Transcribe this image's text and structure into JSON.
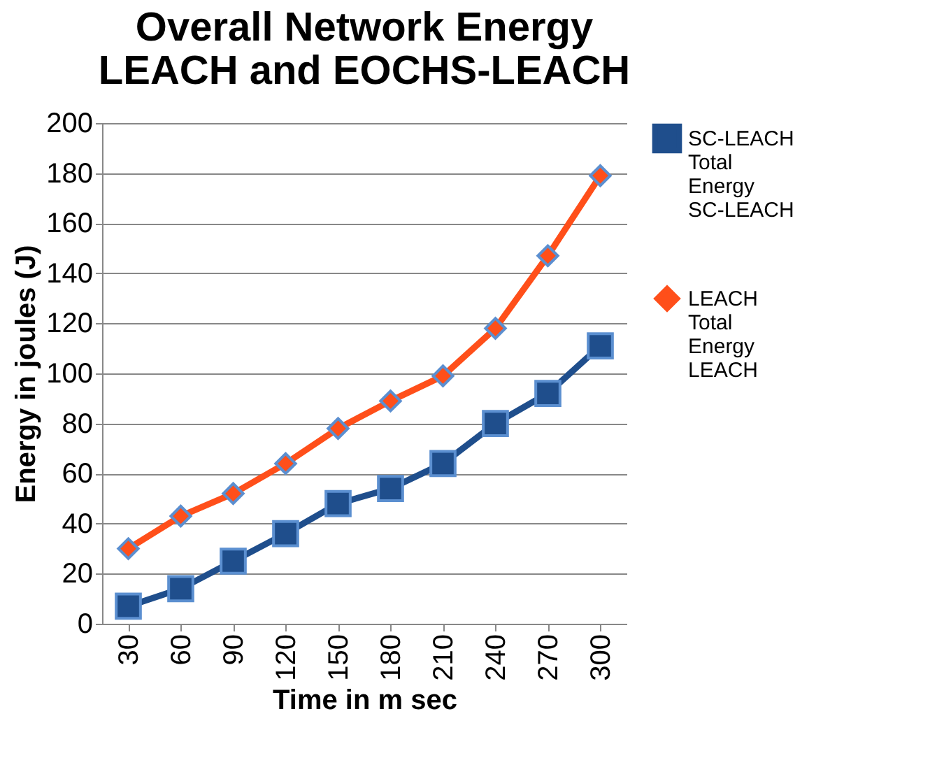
{
  "chart_data": {
    "type": "line",
    "title": "Overall Network Energy LEACH and EOCHS-LEACH",
    "xlabel": "Time in m sec",
    "ylabel": "Energy  in joules (J)",
    "categories": [
      "30",
      "60",
      "90",
      "120",
      "150",
      "180",
      "210",
      "240",
      "270",
      "300"
    ],
    "series": [
      {
        "name": "SC-LEACH Total Energy SC-LEACH",
        "color": "#1f4e8c",
        "marker": "square",
        "values": [
          7,
          14,
          25,
          36,
          48,
          54,
          64,
          80,
          92,
          111
        ]
      },
      {
        "name": "LEACH Total Energy LEACH",
        "color": "#ff4f1a",
        "marker": "diamond",
        "values": [
          30,
          43,
          52,
          64,
          78,
          89,
          99,
          118,
          147,
          179
        ]
      }
    ],
    "ylim": [
      0,
      200
    ],
    "yticks": [
      0,
      20,
      40,
      60,
      80,
      100,
      120,
      140,
      160,
      180,
      200
    ],
    "grid": "y",
    "legend": "right"
  }
}
